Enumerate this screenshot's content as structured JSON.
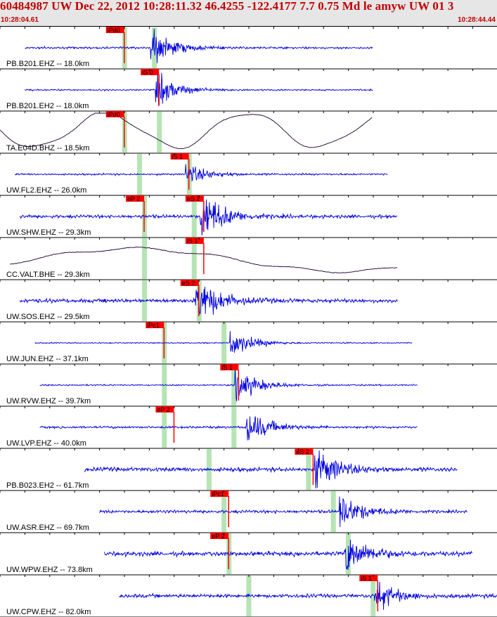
{
  "header": {
    "title": "60484987 UW Dec 22, 2012 10:28:11.32    46.4255 -122.4177  7.7 0.75 Md le amyw UW 01   3",
    "time_start": "10:28:04.61",
    "time_end": "10:28:44.44"
  },
  "colors": {
    "trace": "#0000e0",
    "trace_alt": "#1a0033",
    "pick": "#ff0000",
    "pick_text": "#000000",
    "theory_band": "#a8dfa8",
    "grid": "#000000",
    "header_bg": "#e6e6e6",
    "header_text": "#c00000"
  },
  "traces": [
    {
      "label": "PB.B201.EHZ -- 18.0km",
      "color": "trace",
      "style": "seismic",
      "amp": 0.35,
      "wave_start": 0.05,
      "wave_end": 0.75,
      "event_at": 0.31,
      "event_amp": 2.3,
      "picks": [
        {
          "text": "iPd0",
          "at": 0.25
        }
      ],
      "bands": [
        0.25,
        0.31
      ]
    },
    {
      "label": "PB.B201.EH2 -- 18.0km",
      "color": "trace",
      "style": "seismic",
      "amp": 0.25,
      "wave_start": 0.05,
      "wave_end": 0.75,
      "event_at": 0.32,
      "event_amp": 3.0,
      "picks": [
        {
          "text": "iS 0",
          "at": 0.32
        }
      ],
      "bands": []
    },
    {
      "label": "TA.E04D.BHZ -- 18.5km",
      "color": "trace_alt",
      "style": "smooth",
      "amp": 3.5,
      "wave_start": 0.0,
      "wave_end": 0.75,
      "picks": [
        {
          "text": "iPd0",
          "at": 0.25
        }
      ],
      "bands": [
        0.25,
        0.32
      ]
    },
    {
      "label": "UW.FL2.EHZ -- 26.0km",
      "color": "trace",
      "style": "seismic",
      "amp": 0.3,
      "wave_start": 0.03,
      "wave_end": 0.78,
      "event_at": 0.38,
      "event_amp": 1.6,
      "picks": [
        {
          "text": "iS 1",
          "at": 0.38
        }
      ],
      "bands": [
        0.28,
        0.38
      ]
    },
    {
      "label": "UW.SHW.EHZ -- 29.3km",
      "color": "trace",
      "style": "seismic",
      "amp": 0.55,
      "wave_start": 0.04,
      "wave_end": 0.8,
      "event_at": 0.41,
      "event_amp": 2.2,
      "picks": [
        {
          "text": "eP 2",
          "at": 0.29
        },
        {
          "text": "eS 2",
          "at": 0.41
        }
      ],
      "bands": [
        0.29,
        0.39
      ]
    },
    {
      "label": "CC.VALT.BHE -- 29.3km",
      "color": "trace_alt",
      "style": "drift",
      "amp": 1.8,
      "wave_start": 0.02,
      "wave_end": 0.8,
      "picks": [
        {
          "text": "iS 1",
          "at": 0.41
        }
      ],
      "bands": [
        0.29,
        0.39
      ]
    },
    {
      "label": "UW.SOS.EHZ -- 29.5km",
      "color": "trace",
      "style": "seismic",
      "amp": 0.65,
      "wave_start": 0.04,
      "wave_end": 0.8,
      "event_at": 0.4,
      "event_amp": 1.7,
      "picks": [
        {
          "text": "eS 2",
          "at": 0.4
        }
      ],
      "bands": [
        0.29,
        0.4
      ]
    },
    {
      "label": "UW.JUN.EHZ -- 37.1km",
      "color": "trace",
      "style": "seismic",
      "amp": 0.18,
      "wave_start": 0.07,
      "wave_end": 0.83,
      "event_at": 0.47,
      "event_amp": 3.5,
      "picks": [
        {
          "text": "iPc1",
          "at": 0.33
        }
      ],
      "bands": [
        0.33,
        0.45
      ]
    },
    {
      "label": "UW.RVW.EHZ -- 39.7km",
      "color": "trace",
      "style": "seismic",
      "amp": 0.25,
      "wave_start": 0.08,
      "wave_end": 0.84,
      "event_at": 0.48,
      "event_amp": 3.0,
      "picks": [
        {
          "text": "iS 1",
          "at": 0.48
        }
      ],
      "bands": [
        0.33,
        0.47
      ]
    },
    {
      "label": "UW.LVP.EHZ -- 40.0km",
      "color": "trace",
      "style": "seismic",
      "amp": 0.4,
      "wave_start": 0.08,
      "wave_end": 0.84,
      "event_at": 0.5,
      "event_amp": 2.0,
      "picks": [
        {
          "text": "eP 2",
          "at": 0.35
        }
      ],
      "bands": [
        0.33,
        0.47
      ]
    },
    {
      "label": "PB.B023.EH2 -- 61.7km",
      "color": "trace",
      "style": "seismic",
      "amp": 0.7,
      "wave_start": 0.17,
      "wave_end": 0.92,
      "event_at": 0.64,
      "event_amp": 1.4,
      "picks": [
        {
          "text": "eS 2",
          "at": 0.63
        }
      ],
      "bands": [
        0.42,
        0.62
      ]
    },
    {
      "label": "UW.ASR.EHZ -- 69.7km",
      "color": "trace",
      "style": "seismic",
      "amp": 0.5,
      "wave_start": 0.2,
      "wave_end": 0.94,
      "event_at": 0.69,
      "event_amp": 1.6,
      "picks": [
        {
          "text": "iPc1",
          "at": 0.46
        }
      ],
      "bands": [
        0.45,
        0.67
      ]
    },
    {
      "label": "UW.WPW.EHZ -- 73.8km",
      "color": "trace",
      "style": "seismic",
      "amp": 0.75,
      "wave_start": 0.21,
      "wave_end": 0.95,
      "event_at": 0.7,
      "event_amp": 1.3,
      "picks": [
        {
          "text": "eP 2",
          "at": 0.46
        }
      ],
      "bands": [
        0.46,
        0.7
      ]
    },
    {
      "label": "UW.CPW.EHZ -- 82.0km",
      "color": "trace",
      "style": "seismic",
      "amp": 0.6,
      "wave_start": 0.24,
      "wave_end": 1.0,
      "event_at": 0.76,
      "event_amp": 1.2,
      "picks": [
        {
          "text": "iS 1",
          "at": 0.76
        }
      ],
      "bands": [
        0.5,
        0.75
      ]
    }
  ]
}
